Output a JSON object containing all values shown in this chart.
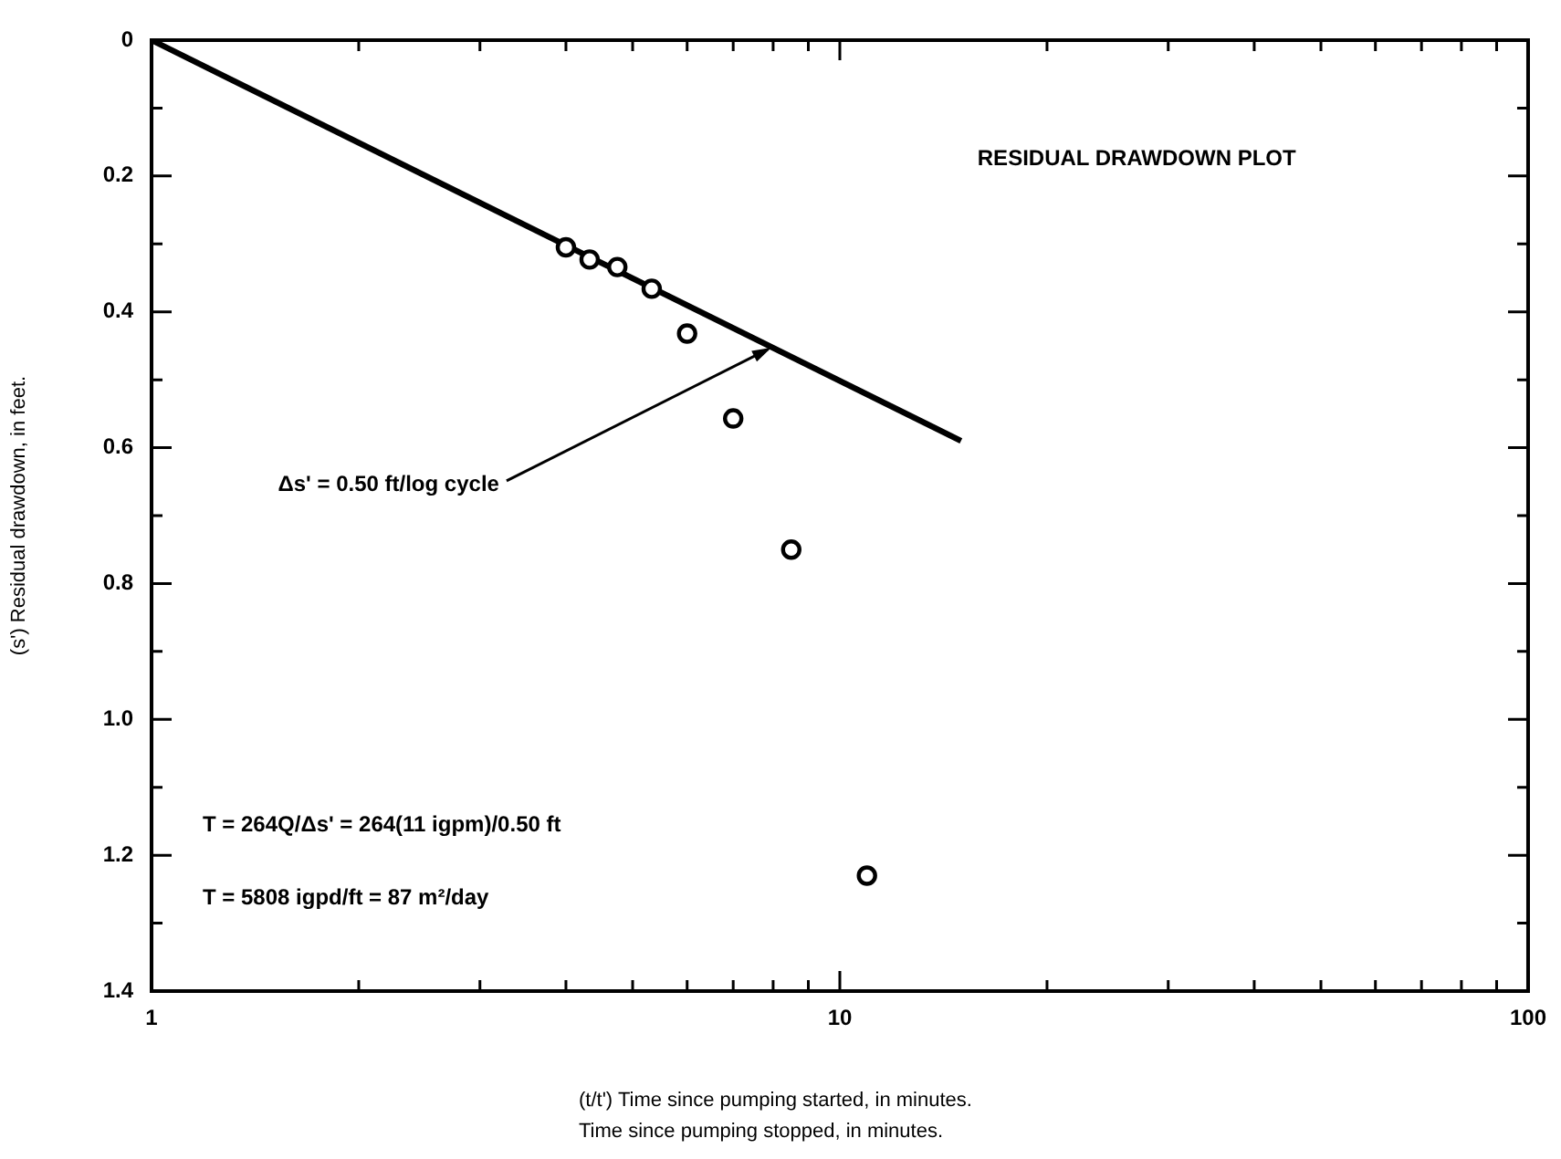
{
  "chart_data": {
    "type": "scatter",
    "title": "RESIDUAL DRAWDOWN PLOT",
    "xlabel": "(t/t') Time since pumping started, in minutes.\nTime since pumping stopped, in minutes.",
    "ylabel": "(s') Residual drawdown, in feet.",
    "log": "x",
    "grid": false,
    "legend": false,
    "xlim": [
      1,
      100
    ],
    "xticks": [
      1,
      {
        "value": 2,
        "label": null
      },
      {
        "value": 3,
        "label": null
      },
      {
        "value": 4,
        "label": null
      },
      {
        "value": 5,
        "label": null
      },
      {
        "value": 6,
        "label": null
      },
      {
        "value": 7,
        "label": null
      },
      {
        "value": 8,
        "label": null
      },
      {
        "value": 9,
        "label": null
      },
      10,
      {
        "value": 20,
        "label": null
      },
      {
        "value": 30,
        "label": null
      },
      {
        "value": 40,
        "label": null
      },
      {
        "value": 50,
        "label": null
      },
      {
        "value": 60,
        "label": null
      },
      {
        "value": 70,
        "label": null
      },
      {
        "value": 80,
        "label": null
      },
      {
        "value": 90,
        "label": null
      },
      100
    ],
    "ylim": [
      1.4,
      0
    ],
    "yticks": [
      0,
      {
        "value": 0.1,
        "label": null
      },
      0.2,
      {
        "value": 0.3,
        "label": null
      },
      0.4,
      {
        "value": 0.5,
        "label": null
      },
      0.6,
      {
        "value": 0.7,
        "label": null
      },
      0.8,
      {
        "value": 0.9,
        "label": null
      },
      {
        "value": 1,
        "label": "1.0"
      },
      {
        "value": 1.1,
        "label": null
      },
      1.2,
      {
        "value": 1.3,
        "label": null
      },
      1.4
    ],
    "series": [
      {
        "marker": "circle",
        "color": "#000000",
        "x": [
          4.0,
          4.33,
          4.75,
          5.33,
          6.0,
          7.0,
          8.5,
          10.95
        ],
        "values": [
          0.305,
          0.323,
          0.334,
          0.366,
          0.432,
          0.557,
          0.75,
          1.23
        ]
      },
      {
        "type": "line",
        "marker": "none",
        "color": "#000000",
        "x": [
          1,
          15
        ],
        "values": [
          0,
          0.59
        ]
      }
    ],
    "annotations": [
      {
        "text": "Δs' = 0.50 ft/log cycle",
        "x": 8,
        "y": 0.45
      },
      "T = 264Q/Δs' = 264(11 igpm)/0.50 ft",
      "T = 5808 igpd/ft = 87 m²/day"
    ]
  }
}
